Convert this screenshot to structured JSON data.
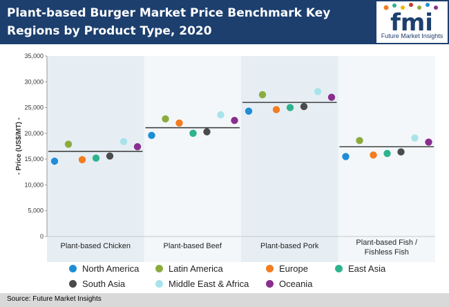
{
  "header": {
    "title": "Plant-based Burger Market Price Benchmark Key Regions by Product Type, 2020",
    "logo_text": "fmi",
    "logo_subtitle": "Future Market Insights"
  },
  "source": "Source: Future Market Insights",
  "colors": {
    "header_bg": "#1c3f6e",
    "panel_a": "#e6eef4",
    "panel_b": "#f3f7f9",
    "benchmark_line": "#404040"
  },
  "chart_data": {
    "type": "scatter",
    "ylabel": "- Price (US$/MT) -",
    "ylim": [
      0,
      35000
    ],
    "yticks": [
      "0",
      "5,000",
      "10,000",
      "15,000",
      "20,000",
      "25,000",
      "30,000",
      "35,000"
    ],
    "categories": [
      "Plant-based Chicken",
      "Plant-based Beef",
      "Plant-based Pork",
      "Plant-based Fish / Fishless Fish"
    ],
    "benchmarks": [
      16500,
      21100,
      26000,
      17400
    ],
    "series": [
      {
        "name": "North America",
        "color": "#1f8dd6",
        "values": [
          14600,
          19600,
          24300,
          15500
        ]
      },
      {
        "name": "Latin America",
        "color": "#8bac3d",
        "values": [
          17900,
          22800,
          27500,
          18600
        ]
      },
      {
        "name": "Europe",
        "color": "#f47c20",
        "values": [
          14900,
          22000,
          24600,
          15800
        ]
      },
      {
        "name": "East Asia",
        "color": "#2db38d",
        "values": [
          15200,
          20000,
          25000,
          16100
        ]
      },
      {
        "name": "South Asia",
        "color": "#4b4b4b",
        "values": [
          15600,
          20300,
          25200,
          16400
        ]
      },
      {
        "name": "Middle East & Africa",
        "color": "#a9e3ea",
        "values": [
          18400,
          23600,
          28100,
          19100
        ]
      },
      {
        "name": "Oceania",
        "color": "#8a2e8e",
        "values": [
          17400,
          22500,
          27000,
          18300
        ]
      }
    ]
  }
}
